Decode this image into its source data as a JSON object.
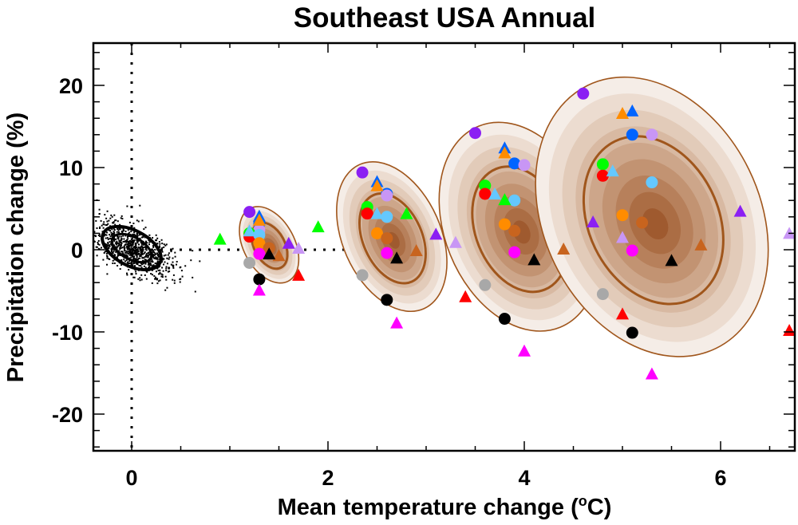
{
  "chart_data": {
    "type": "scatter",
    "title": "Southeast USA Annual",
    "xlabel": "Mean temperature change (°C)",
    "ylabel": "Precipitation change (%)",
    "xlim": [
      -0.4,
      6.7
    ],
    "ylim": [
      -25,
      25
    ],
    "xticks": [
      0,
      2,
      4,
      6
    ],
    "xtick_labels": [
      "0",
      "2",
      "4",
      "6"
    ],
    "yticks": [
      -20,
      -10,
      0,
      10,
      20
    ],
    "ytick_labels": [
      "-20",
      "-10",
      "0",
      "10",
      "20"
    ],
    "x_minor_step": 0.5,
    "y_minor_step": 2,
    "grid": false,
    "reference_lines": [
      {
        "orientation": "vertical",
        "value": 0,
        "style": "dotted"
      },
      {
        "orientation": "horizontal",
        "value": 0,
        "style": "dotted",
        "x_range": [
          0,
          2.2
        ]
      }
    ],
    "natural_variability": {
      "description": "black scatter cloud with ellipse around origin",
      "center": [
        0.0,
        0.2
      ],
      "x_sd": 0.15,
      "y_sd": 1.4
    },
    "ellipse_colors": {
      "outline": "#a0561c",
      "core": "#9c5520",
      "levels": [
        "#f5ede7",
        "#ecdcd0",
        "#e2cbb9",
        "#d8b9a2",
        "#cda68a",
        "#c29372",
        "#b7805b",
        "#ab6d44",
        "#9f5a2f"
      ]
    },
    "ellipses": [
      {
        "name": "period-1",
        "center": [
          1.4,
          0.6
        ],
        "rx_c": 0.26,
        "ry_pct": 5.0,
        "angle_deg": -28
      },
      {
        "name": "period-2",
        "center": [
          2.65,
          1.6
        ],
        "rx_c": 0.5,
        "ry_pct": 9.6,
        "angle_deg": -24
      },
      {
        "name": "period-3",
        "center": [
          3.95,
          2.8
        ],
        "rx_c": 0.76,
        "ry_pct": 13.2,
        "angle_deg": -22
      },
      {
        "name": "period-4",
        "center": [
          5.3,
          4.0
        ],
        "rx_c": 1.1,
        "ry_pct": 17.8,
        "angle_deg": -26
      }
    ],
    "series": [
      {
        "name": "model-purple",
        "color": "#8b1ff3",
        "marker": "circle",
        "points": [
          [
            1.2,
            4.6
          ],
          [
            2.35,
            9.4
          ],
          [
            3.5,
            14.2
          ],
          [
            4.6,
            19.0
          ]
        ]
      },
      {
        "name": "model-blue",
        "color": "#0064ff",
        "marker": "circle",
        "points": [
          [
            1.3,
            3.2
          ],
          [
            2.6,
            6.8
          ],
          [
            3.9,
            10.5
          ],
          [
            5.1,
            14.0
          ]
        ]
      },
      {
        "name": "model-lilac",
        "color": "#c896f5",
        "marker": "circle",
        "points": [
          [
            1.3,
            2.4
          ],
          [
            2.6,
            6.6
          ],
          [
            4.0,
            10.3
          ],
          [
            5.3,
            14.0
          ]
        ]
      },
      {
        "name": "model-green",
        "color": "#00ff00",
        "marker": "circle",
        "points": [
          [
            1.2,
            2.0
          ],
          [
            2.4,
            5.2
          ],
          [
            3.6,
            7.8
          ],
          [
            4.8,
            10.4
          ]
        ]
      },
      {
        "name": "model-red",
        "color": "#ff0000",
        "marker": "circle",
        "points": [
          [
            1.2,
            1.6
          ],
          [
            2.4,
            4.4
          ],
          [
            3.6,
            6.8
          ],
          [
            4.8,
            9.0
          ]
        ]
      },
      {
        "name": "model-skyblue",
        "color": "#64c8ff",
        "marker": "circle",
        "points": [
          [
            1.3,
            1.8
          ],
          [
            2.6,
            4.0
          ],
          [
            3.9,
            6.0
          ],
          [
            5.3,
            8.2
          ]
        ]
      },
      {
        "name": "model-orange",
        "color": "#ff8c00",
        "marker": "circle",
        "points": [
          [
            1.3,
            0.8
          ],
          [
            2.5,
            2.0
          ],
          [
            3.8,
            3.1
          ],
          [
            5.0,
            4.2
          ]
        ]
      },
      {
        "name": "model-burnt",
        "color": "#c8641e",
        "marker": "circle",
        "points": [
          [
            1.4,
            0.2
          ],
          [
            2.6,
            1.4
          ],
          [
            3.9,
            2.3
          ],
          [
            5.2,
            3.3
          ]
        ]
      },
      {
        "name": "model-magenta",
        "color": "#ff00ff",
        "marker": "circle",
        "points": [
          [
            1.3,
            -0.5
          ],
          [
            2.6,
            -0.4
          ],
          [
            3.9,
            -0.3
          ],
          [
            5.1,
            -0.1
          ]
        ]
      },
      {
        "name": "model-grey",
        "color": "#a8a8a8",
        "marker": "circle",
        "points": [
          [
            1.2,
            -1.6
          ],
          [
            2.35,
            -3.1
          ],
          [
            3.6,
            -4.3
          ],
          [
            4.8,
            -5.4
          ]
        ]
      },
      {
        "name": "model-black",
        "color": "#000000",
        "marker": "circle",
        "points": [
          [
            1.3,
            -3.6
          ],
          [
            2.6,
            -6.1
          ],
          [
            3.8,
            -8.4
          ],
          [
            5.1,
            -10.1
          ]
        ]
      },
      {
        "name": "tri-green",
        "color": "#00ff00",
        "marker": "triangle",
        "points": [
          [
            0.9,
            1.3
          ],
          [
            1.9,
            2.8
          ],
          [
            2.8,
            4.4
          ],
          [
            3.8,
            6.1
          ]
        ]
      },
      {
        "name": "tri-blue",
        "color": "#0064ff",
        "marker": "triangle",
        "points": [
          [
            1.3,
            4.1
          ],
          [
            2.5,
            8.3
          ],
          [
            3.8,
            12.4
          ],
          [
            5.1,
            16.9
          ]
        ]
      },
      {
        "name": "tri-orange",
        "color": "#ff8c00",
        "marker": "triangle",
        "points": [
          [
            1.3,
            3.6
          ],
          [
            2.5,
            7.8
          ],
          [
            3.8,
            11.8
          ],
          [
            5.0,
            16.6
          ]
        ]
      },
      {
        "name": "tri-skyblue",
        "color": "#64c8ff",
        "marker": "triangle",
        "points": [
          [
            1.2,
            2.3
          ],
          [
            2.5,
            4.4
          ],
          [
            3.7,
            6.8
          ],
          [
            4.9,
            9.6
          ]
        ]
      },
      {
        "name": "tri-purple",
        "color": "#8b1ff3",
        "marker": "triangle",
        "points": [
          [
            1.6,
            0.8
          ],
          [
            3.1,
            1.9
          ],
          [
            4.7,
            3.4
          ],
          [
            6.2,
            4.7
          ]
        ]
      },
      {
        "name": "tri-lilac",
        "color": "#c896f5",
        "marker": "triangle",
        "points": [
          [
            1.7,
            0.2
          ],
          [
            3.3,
            0.9
          ],
          [
            5.0,
            1.5
          ],
          [
            6.7,
            2.0
          ]
        ]
      },
      {
        "name": "tri-burnt",
        "color": "#c8641e",
        "marker": "triangle",
        "points": [
          [
            1.5,
            -0.7
          ],
          [
            2.9,
            -0.1
          ],
          [
            4.4,
            0.1
          ],
          [
            5.8,
            0.6
          ]
        ]
      },
      {
        "name": "tri-black",
        "color": "#000000",
        "marker": "triangle",
        "points": [
          [
            1.4,
            -0.5
          ],
          [
            2.7,
            -1.0
          ],
          [
            4.1,
            -1.2
          ],
          [
            5.5,
            -1.3
          ]
        ]
      },
      {
        "name": "tri-red",
        "color": "#ff0000",
        "marker": "triangle",
        "points": [
          [
            1.7,
            -3.1
          ],
          [
            3.4,
            -5.7
          ],
          [
            5.0,
            -7.8
          ],
          [
            6.7,
            -9.8
          ]
        ]
      },
      {
        "name": "tri-magenta",
        "color": "#ff00ff",
        "marker": "triangle",
        "points": [
          [
            1.3,
            -4.9
          ],
          [
            2.7,
            -8.9
          ],
          [
            4.0,
            -12.3
          ],
          [
            5.3,
            -15.1
          ]
        ]
      }
    ]
  }
}
